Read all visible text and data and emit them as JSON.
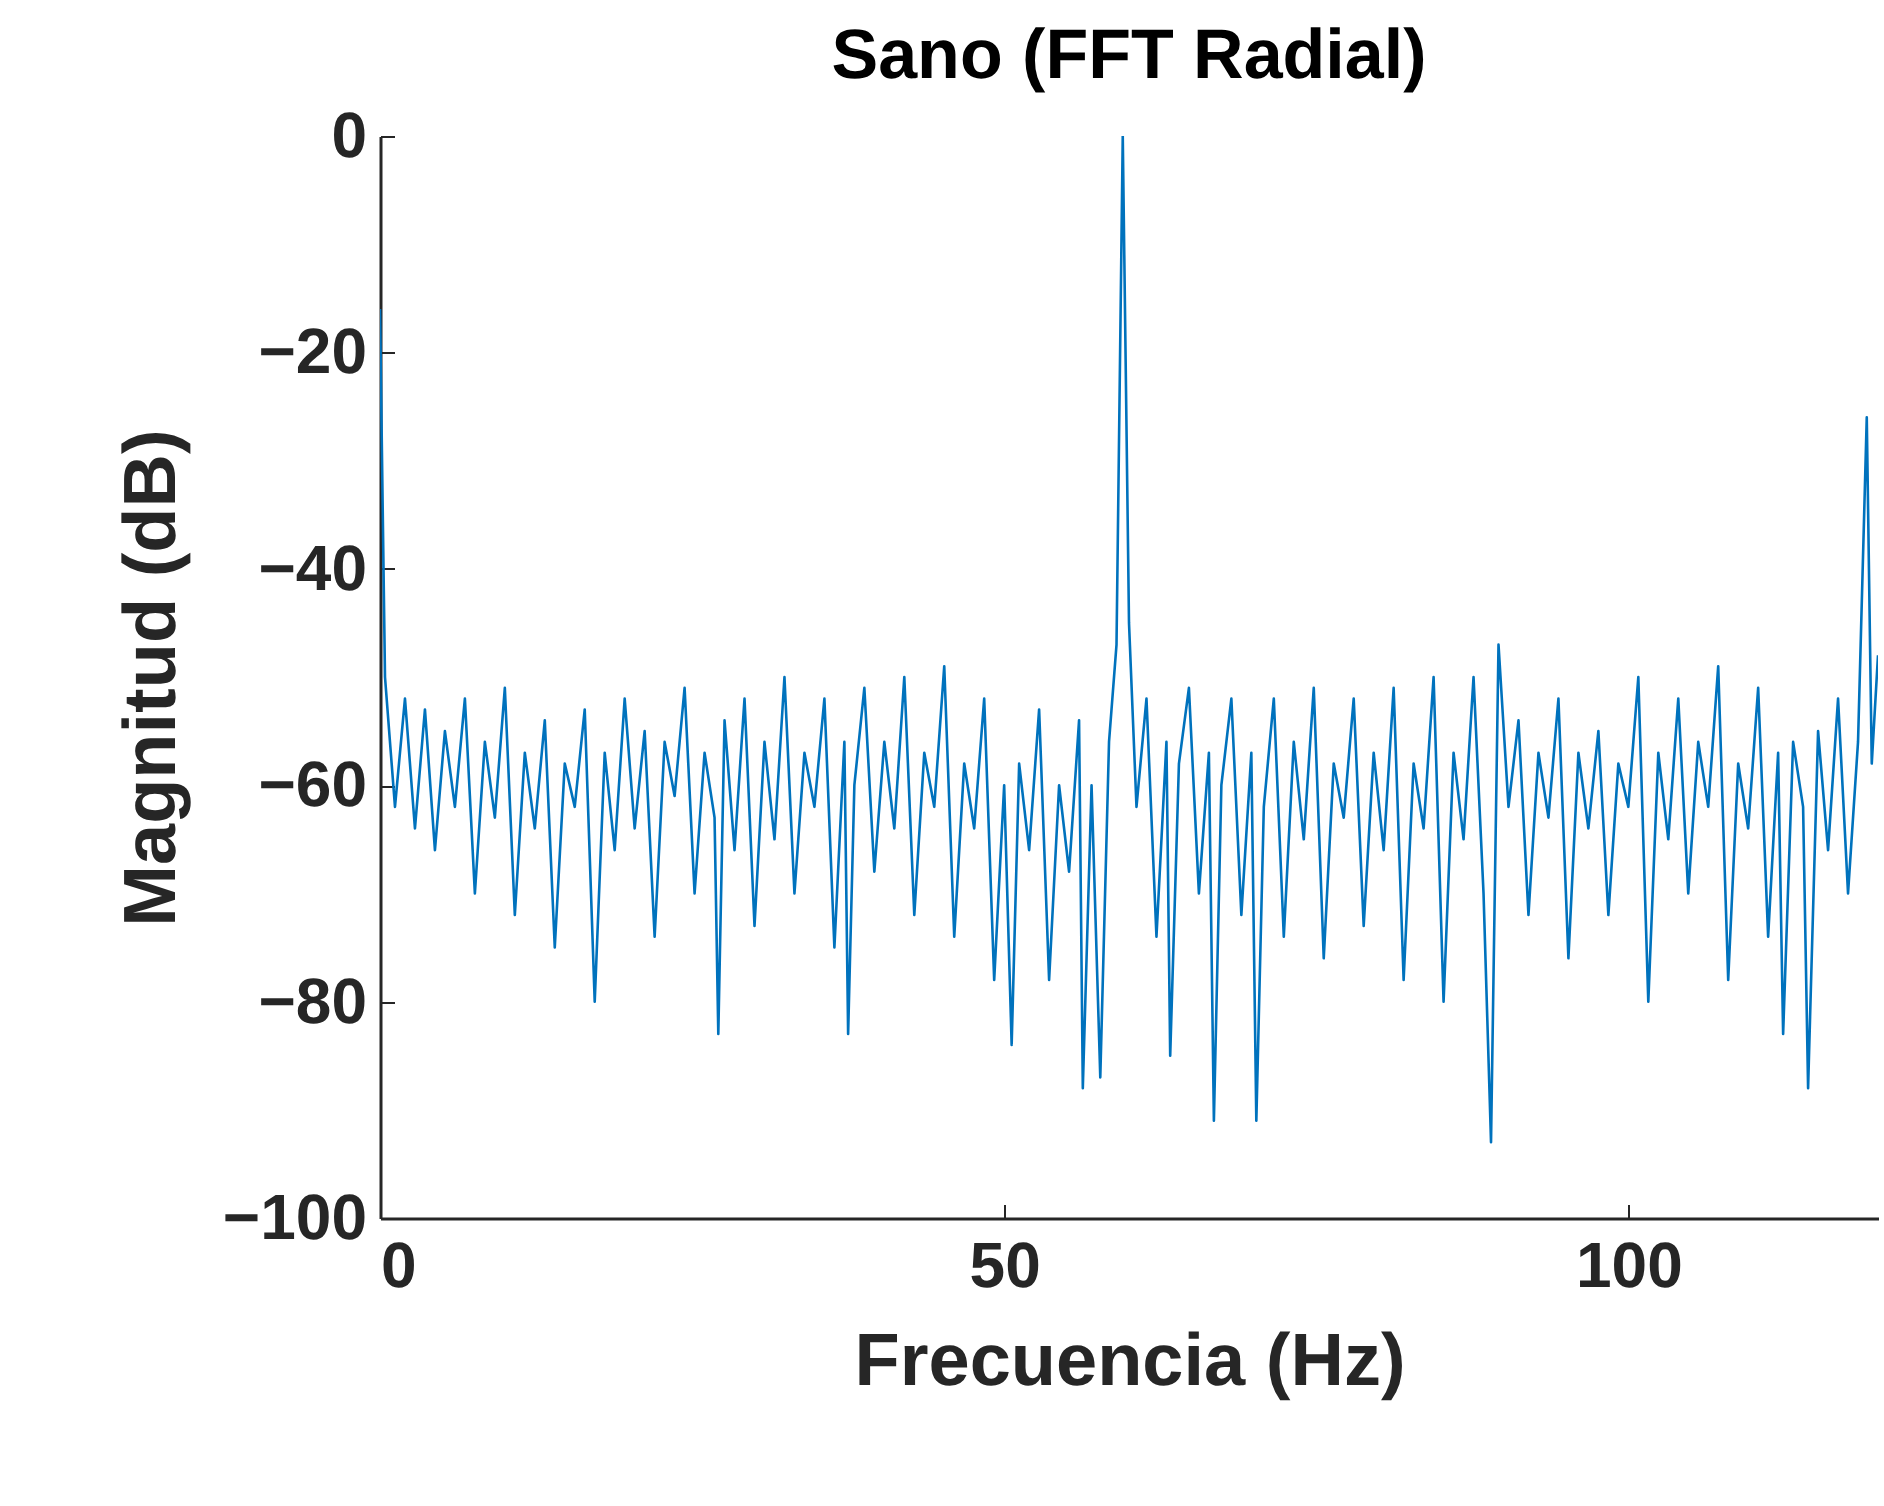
{
  "chart_data": {
    "type": "line",
    "title": "Sano (FFT Radial)",
    "xlabel": "Frecuencia (Hz)",
    "ylabel": "Magnitud (dB)",
    "x": [
      0,
      0.4,
      1.2,
      2,
      2.8,
      3.6,
      4.4,
      5.2,
      6,
      6.8,
      7.6,
      8.4,
      9.2,
      10,
      10.8,
      11.6,
      12.4,
      13.2,
      14,
      14.8,
      15.6,
      16.4,
      17.2,
      18,
      18.8,
      19.6,
      20.4,
      21.2,
      22,
      22.8,
      23.6,
      24.4,
      25.2,
      26,
      26.8,
      27.1,
      27.6,
      28.4,
      29.2,
      30,
      30.8,
      31.6,
      32.4,
      33.2,
      34,
      34.8,
      35.6,
      36.4,
      37.2,
      37.5,
      38,
      38.8,
      39.6,
      40.4,
      41.2,
      42,
      42.8,
      43.6,
      44.4,
      45.2,
      46,
      46.8,
      47.6,
      48.4,
      49.2,
      50,
      50.6,
      51.2,
      52,
      52.8,
      53.6,
      54.4,
      55.2,
      56,
      56.3,
      57,
      57.7,
      58.4,
      59,
      59.5,
      60,
      60.6,
      61.4,
      62.2,
      63,
      63.3,
      64,
      64.8,
      65.6,
      66.4,
      66.8,
      67.4,
      68.2,
      69,
      69.8,
      70.2,
      70.8,
      71.6,
      72.4,
      73.2,
      74,
      74.8,
      75.6,
      76.4,
      77.2,
      78,
      78.8,
      79.6,
      80.4,
      81.2,
      82,
      82.8,
      83.6,
      84.4,
      85.2,
      86,
      86.8,
      87.6,
      88.4,
      89,
      89.6,
      90.4,
      91.2,
      92,
      92.8,
      93.6,
      94.4,
      95.2,
      96,
      96.8,
      97.6,
      98.4,
      99.2,
      100,
      100.8,
      101.6,
      102.4,
      103.2,
      104,
      104.8,
      105.6,
      106.4,
      107.2,
      108,
      108.8,
      109.6,
      110.4,
      111.2,
      112,
      112.4,
      113.2,
      114,
      114.4,
      115.2,
      116,
      116.8,
      117.6,
      118.4,
      119.1,
      119.5,
      120
    ],
    "series": [
      {
        "color": "#0072bd",
        "values": [
          -16,
          -50,
          -62,
          -52,
          -64,
          -53,
          -66,
          -55,
          -62,
          -52,
          -70,
          -56,
          -63,
          -51,
          -72,
          -57,
          -64,
          -54,
          -75,
          -58,
          -62,
          -53,
          -80,
          -57,
          -66,
          -52,
          -64,
          -55,
          -74,
          -56,
          -61,
          -51,
          -70,
          -57,
          -63,
          -83,
          -54,
          -66,
          -52,
          -73,
          -56,
          -65,
          -50,
          -70,
          -57,
          -62,
          -52,
          -75,
          -56,
          -83,
          -60,
          -51,
          -68,
          -56,
          -64,
          -50,
          -72,
          -57,
          -62,
          -49,
          -74,
          -58,
          -64,
          -52,
          -78,
          -60,
          -84,
          -58,
          -66,
          -53,
          -78,
          -60,
          -68,
          -54,
          -88,
          -60,
          -87,
          -56,
          -47,
          0,
          -45,
          -62,
          -52,
          -74,
          -56,
          -85,
          -58,
          -51,
          -70,
          -57,
          -91,
          -60,
          -52,
          -72,
          -57,
          -91,
          -62,
          -52,
          -74,
          -56,
          -65,
          -51,
          -76,
          -58,
          -63,
          -52,
          -73,
          -57,
          -66,
          -51,
          -78,
          -58,
          -64,
          -50,
          -80,
          -57,
          -65,
          -50,
          -70,
          -93,
          -47,
          -62,
          -54,
          -72,
          -57,
          -63,
          -52,
          -76,
          -57,
          -64,
          -55,
          -72,
          -58,
          -62,
          -50,
          -80,
          -57,
          -65,
          -52,
          -70,
          -56,
          -62,
          -49,
          -78,
          -58,
          -64,
          -51,
          -74,
          -57,
          -83,
          -56,
          -62,
          -88,
          -55,
          -66,
          -52,
          -70,
          -56,
          -26,
          -58,
          -48
        ]
      }
    ],
    "xlim": [
      0,
      120
    ],
    "xticks": [
      0,
      50,
      100
    ],
    "ylim": [
      -100,
      0
    ],
    "yticks": [
      -100,
      -80,
      -60,
      -40,
      -20,
      0
    ]
  }
}
